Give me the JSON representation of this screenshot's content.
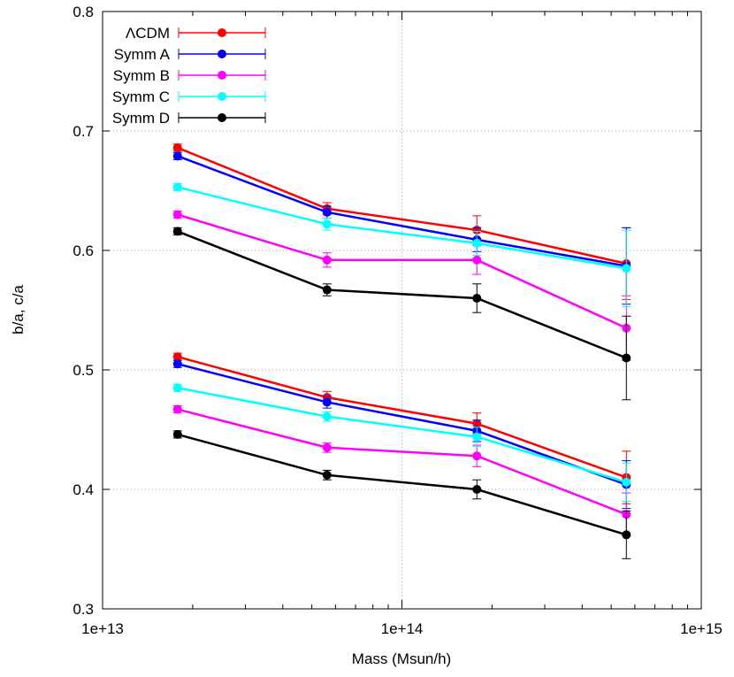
{
  "chart_data": {
    "type": "line",
    "title": "",
    "xlabel": "Mass (Msun/h)",
    "ylabel": "b/a, c/a",
    "xscale": "log",
    "xlim": [
      10000000000000.0,
      1000000000000000.0
    ],
    "ylim": [
      0.3,
      0.8
    ],
    "x_ticks": [
      10000000000000.0,
      100000000000000.0,
      1000000000000000.0
    ],
    "x_tick_labels": [
      "1e+13",
      "1e+14",
      "1e+15"
    ],
    "y_ticks": [
      0.3,
      0.4,
      0.5,
      0.6,
      0.7,
      0.8
    ],
    "y_tick_labels": [
      "0.3",
      "0.4",
      "0.5",
      "0.6",
      "0.7",
      "0.8"
    ],
    "grid": "dotted",
    "legend_position": "top-left",
    "x": [
      17800000000000.0,
      56200000000000.0,
      178000000000000.0,
      562000000000000.0
    ],
    "series": [
      {
        "name": "ΛCDM",
        "color": "#ff0000",
        "b_over_a": [
          0.686,
          0.635,
          0.617,
          0.589
        ],
        "b_over_a_err": [
          0.003,
          0.005,
          0.012,
          0.03
        ],
        "c_over_a": [
          0.511,
          0.477,
          0.455,
          0.41
        ],
        "c_over_a_err": [
          0.003,
          0.005,
          0.009,
          0.022
        ]
      },
      {
        "name": "Symm A",
        "color": "#0000ff",
        "b_over_a": [
          0.679,
          0.632,
          0.609,
          0.587
        ],
        "b_over_a_err": [
          0.003,
          0.005,
          0.01,
          0.032
        ],
        "c_over_a": [
          0.505,
          0.473,
          0.449,
          0.404
        ],
        "c_over_a_err": [
          0.003,
          0.005,
          0.009,
          0.02
        ]
      },
      {
        "name": "Symm B",
        "color": "#ff00ff",
        "b_over_a": [
          0.63,
          0.592,
          0.592,
          0.535
        ],
        "b_over_a_err": [
          0.003,
          0.006,
          0.012,
          0.027
        ],
        "c_over_a": [
          0.467,
          0.435,
          0.428,
          0.379
        ],
        "c_over_a_err": [
          0.003,
          0.004,
          0.009,
          0.018
        ]
      },
      {
        "name": "Symm C",
        "color": "#00ffff",
        "b_over_a": [
          0.653,
          0.622,
          0.606,
          0.585
        ],
        "b_over_a_err": [
          0.003,
          0.005,
          0.01,
          0.032
        ],
        "c_over_a": [
          0.485,
          0.461,
          0.444,
          0.406
        ],
        "c_over_a_err": [
          0.003,
          0.004,
          0.008,
          0.016
        ]
      },
      {
        "name": "Symm D",
        "color": "#000000",
        "b_over_a": [
          0.616,
          0.567,
          0.56,
          0.51
        ],
        "b_over_a_err": [
          0.003,
          0.005,
          0.012,
          0.035
        ],
        "c_over_a": [
          0.446,
          0.412,
          0.4,
          0.362
        ],
        "c_over_a_err": [
          0.003,
          0.004,
          0.008,
          0.02
        ]
      }
    ]
  }
}
